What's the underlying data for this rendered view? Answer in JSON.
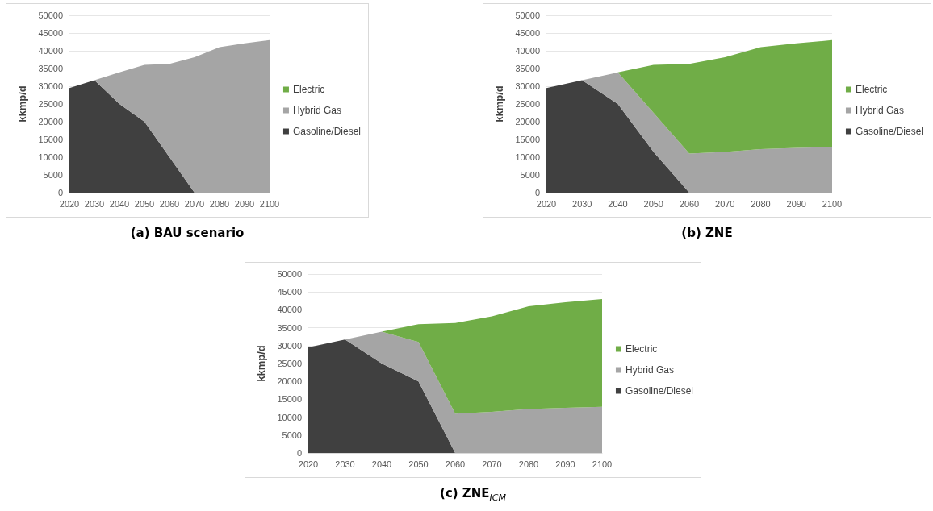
{
  "chart_data": [
    {
      "type": "area",
      "title": "(a) BAU scenario",
      "ylabel": "kkmp/d",
      "categories": [
        "2020",
        "2030",
        "2040",
        "2050",
        "2060",
        "2070",
        "2080",
        "2090",
        "2100"
      ],
      "stacked": true,
      "ylim": [
        0,
        50000
      ],
      "yticks": [
        0,
        5000,
        10000,
        15000,
        20000,
        25000,
        30000,
        35000,
        40000,
        45000,
        50000
      ],
      "grid": "y",
      "legend": "right",
      "series": [
        {
          "name": "Gasoline/Diesel",
          "color": "#404040",
          "values": [
            29500,
            31700,
            25000,
            20000,
            10000,
            0,
            0,
            0,
            0
          ]
        },
        {
          "name": "Hybrid Gas",
          "color": "#a5a5a5",
          "values": [
            0,
            0,
            8900,
            16000,
            26300,
            38200,
            41000,
            42100,
            43000
          ]
        },
        {
          "name": "Electric",
          "color": "#70ad47",
          "values": [
            null,
            null,
            null,
            null,
            null,
            null,
            null,
            null,
            null
          ]
        }
      ]
    },
    {
      "type": "area",
      "title": "(b) ZNE",
      "ylabel": "kkmp/d",
      "categories": [
        "2020",
        "2030",
        "2040",
        "2050",
        "2060",
        "2070",
        "2080",
        "2090",
        "2100"
      ],
      "stacked": true,
      "ylim": [
        0,
        50000
      ],
      "yticks": [
        0,
        5000,
        10000,
        15000,
        20000,
        25000,
        30000,
        35000,
        40000,
        45000,
        50000
      ],
      "grid": "y",
      "legend": "right",
      "series": [
        {
          "name": "Gasoline/Diesel",
          "color": "#404040",
          "values": [
            29500,
            31700,
            25000,
            11500,
            0,
            0,
            0,
            0,
            0
          ]
        },
        {
          "name": "Hybrid Gas",
          "color": "#a5a5a5",
          "values": [
            0,
            0,
            8900,
            11000,
            11000,
            11500,
            12300,
            12600,
            12900
          ]
        },
        {
          "name": "Electric",
          "color": "#70ad47",
          "values": [
            0,
            0,
            0,
            13500,
            25300,
            26700,
            28700,
            29500,
            30100
          ]
        }
      ]
    },
    {
      "type": "area",
      "title": "(c) ZNE$_{ICM}$",
      "ylabel": "kkmp/d",
      "categories": [
        "2020",
        "2030",
        "2040",
        "2050",
        "2060",
        "2070",
        "2080",
        "2090",
        "2100"
      ],
      "stacked": true,
      "ylim": [
        0,
        50000
      ],
      "yticks": [
        0,
        5000,
        10000,
        15000,
        20000,
        25000,
        30000,
        35000,
        40000,
        45000,
        50000
      ],
      "grid": "y",
      "legend": "right",
      "series": [
        {
          "name": "Gasoline/Diesel",
          "color": "#404040",
          "values": [
            29500,
            31700,
            25000,
            20000,
            0,
            0,
            0,
            0,
            0
          ]
        },
        {
          "name": "Hybrid Gas",
          "color": "#a5a5a5",
          "values": [
            0,
            0,
            8900,
            11000,
            11000,
            11500,
            12300,
            12600,
            12900
          ]
        },
        {
          "name": "Electric",
          "color": "#70ad47",
          "values": [
            0,
            0,
            0,
            5000,
            25300,
            26700,
            28700,
            29500,
            30100
          ]
        }
      ]
    }
  ]
}
